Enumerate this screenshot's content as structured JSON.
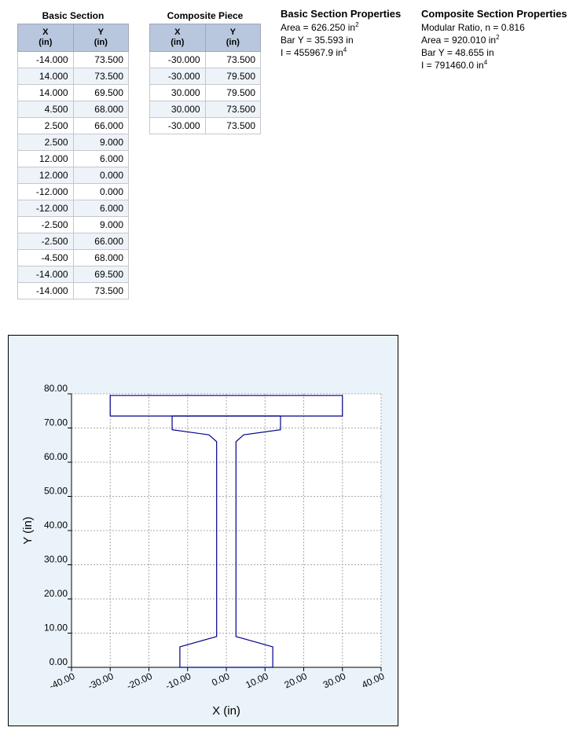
{
  "basic_section": {
    "title": "Basic Section",
    "col_x": "X",
    "col_x_unit": "(in)",
    "col_y": "Y",
    "col_y_unit": "(in)",
    "rows": [
      {
        "x": "-14.000",
        "y": "73.500"
      },
      {
        "x": "14.000",
        "y": "73.500"
      },
      {
        "x": "14.000",
        "y": "69.500"
      },
      {
        "x": "4.500",
        "y": "68.000"
      },
      {
        "x": "2.500",
        "y": "66.000"
      },
      {
        "x": "2.500",
        "y": "9.000"
      },
      {
        "x": "12.000",
        "y": "6.000"
      },
      {
        "x": "12.000",
        "y": "0.000"
      },
      {
        "x": "-12.000",
        "y": "0.000"
      },
      {
        "x": "-12.000",
        "y": "6.000"
      },
      {
        "x": "-2.500",
        "y": "9.000"
      },
      {
        "x": "-2.500",
        "y": "66.000"
      },
      {
        "x": "-4.500",
        "y": "68.000"
      },
      {
        "x": "-14.000",
        "y": "69.500"
      },
      {
        "x": "-14.000",
        "y": "73.500"
      }
    ]
  },
  "composite_piece": {
    "title": "Composite Piece",
    "col_x": "X",
    "col_x_unit": "(in)",
    "col_y": "Y",
    "col_y_unit": "(in)",
    "rows": [
      {
        "x": "-30.000",
        "y": "73.500"
      },
      {
        "x": "-30.000",
        "y": "79.500"
      },
      {
        "x": "30.000",
        "y": "79.500"
      },
      {
        "x": "30.000",
        "y": "73.500"
      },
      {
        "x": "-30.000",
        "y": "73.500"
      }
    ]
  },
  "basic_props": {
    "title": "Basic Section Properties",
    "area": "Area = 626.250 in",
    "area_exp": "2",
    "bar_y": "Bar Y = 35.593 in",
    "inertia": "I = 455967.9 in",
    "inertia_exp": "4"
  },
  "composite_props": {
    "title": "Composite Section Properties",
    "modular_ratio": "Modular Ratio, n = 0.816",
    "area": "Area = 920.010 in",
    "area_exp": "2",
    "bar_y": "Bar Y = 48.655 in",
    "inertia": "I = 791460.0 in",
    "inertia_exp": "4"
  },
  "chart_data": {
    "type": "line",
    "xlabel": "X (in)",
    "ylabel": "Y (in)",
    "xlim": [
      -40,
      40
    ],
    "ylim": [
      0,
      80
    ],
    "x_ticks": [
      -40,
      -30,
      -20,
      -10,
      0,
      10,
      20,
      30,
      40
    ],
    "x_tick_labels": [
      "-40.00",
      "-30.00",
      "-20.00",
      "-10.00",
      "0.00",
      "10.00",
      "20.00",
      "30.00",
      "40.00"
    ],
    "y_ticks": [
      0,
      10,
      20,
      30,
      40,
      50,
      60,
      70,
      80
    ],
    "y_tick_labels": [
      "0.00",
      "10.00",
      "20.00",
      "30.00",
      "40.00",
      "50.00",
      "60.00",
      "70.00",
      "80.00"
    ],
    "grid": true,
    "line_color": "#00008b",
    "series": [
      {
        "x": [
          -14,
          14,
          14,
          4.5,
          2.5,
          2.5,
          12,
          12,
          -12,
          -12,
          -2.5,
          -2.5,
          -4.5,
          -14,
          -14
        ],
        "y": [
          73.5,
          73.5,
          69.5,
          68,
          66,
          9,
          6,
          0,
          0,
          6,
          9,
          66,
          68,
          69.5,
          73.5
        ]
      },
      {
        "x": [
          -30,
          -30,
          30,
          30,
          -30
        ],
        "y": [
          73.5,
          79.5,
          79.5,
          73.5,
          73.5
        ]
      }
    ]
  }
}
